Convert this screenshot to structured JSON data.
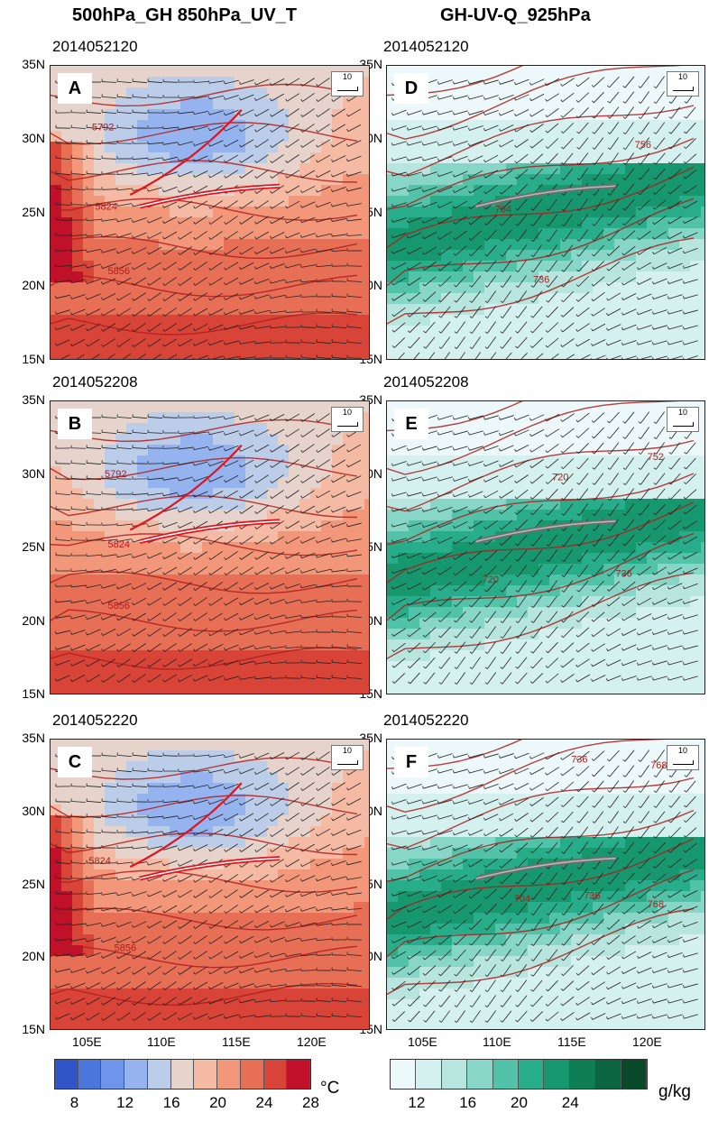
{
  "titles": {
    "left": "500hPa_GH 850hPa_UV_T",
    "right": "GH-UV-Q_925hPa"
  },
  "times": [
    "2014052120",
    "2014052208",
    "2014052220"
  ],
  "panels": {
    "A": {
      "letter": "A",
      "time": "2014052120",
      "ref": "10",
      "contours": [
        {
          "label": "5792"
        },
        {
          "label": "5824"
        },
        {
          "label": "5856"
        }
      ]
    },
    "B": {
      "letter": "B",
      "time": "2014052208",
      "ref": "10",
      "contours": [
        {
          "label": "5792"
        },
        {
          "label": "5824"
        },
        {
          "label": "5856"
        }
      ]
    },
    "C": {
      "letter": "C",
      "time": "2014052220",
      "ref": "10",
      "contours": [
        {
          "label": "5824"
        },
        {
          "label": "5856"
        }
      ]
    },
    "D": {
      "letter": "D",
      "time": "2014052120",
      "ref": "10",
      "contours": [
        {
          "label": "756"
        },
        {
          "label": "704"
        },
        {
          "label": "736"
        }
      ]
    },
    "E": {
      "letter": "E",
      "time": "2014052208",
      "ref": "10",
      "contours": [
        {
          "label": "752"
        },
        {
          "label": "720"
        },
        {
          "label": "720"
        },
        {
          "label": "736"
        }
      ]
    },
    "F": {
      "letter": "F",
      "time": "2014052220",
      "ref": "10",
      "contours": [
        {
          "label": "736"
        },
        {
          "label": "768"
        },
        {
          "label": "704"
        },
        {
          "label": "736"
        },
        {
          "label": "768"
        }
      ]
    }
  },
  "axes": {
    "lat_labels": [
      "35N",
      "30N",
      "25N",
      "20N",
      "15N"
    ],
    "lon_labels": [
      "105E",
      "110E",
      "115E",
      "120E"
    ]
  },
  "colorbars": {
    "temperature": {
      "unit": "°C",
      "ticks": [
        "8",
        "12",
        "16",
        "20",
        "24",
        "28"
      ],
      "colors": [
        "#2f55c9",
        "#4b77dd",
        "#6f95ea",
        "#95b3ef",
        "#bccdea",
        "#e6d3cb",
        "#f5baa3",
        "#f2977a",
        "#e66f56",
        "#d84437",
        "#c0102a"
      ]
    },
    "humidity": {
      "unit": "g/kg",
      "ticks": [
        "12",
        "16",
        "20",
        "24"
      ],
      "colors": [
        "#ecf8f9",
        "#d4f0ef",
        "#b8e6df",
        "#88d6c7",
        "#52c3a8",
        "#27ad8a",
        "#17976e",
        "#0d7e56",
        "#0a6540",
        "#08492a"
      ]
    }
  }
}
